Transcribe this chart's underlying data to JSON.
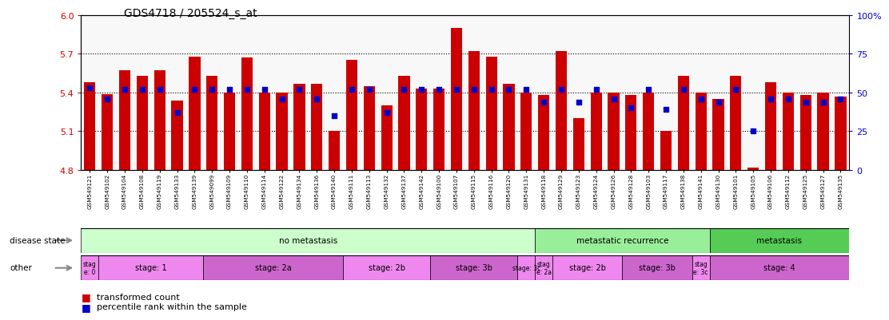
{
  "title": "GDS4718 / 205524_s_at",
  "samples": [
    "GSM549121",
    "GSM549102",
    "GSM549104",
    "GSM549108",
    "GSM549119",
    "GSM549133",
    "GSM549139",
    "GSM549099",
    "GSM549109",
    "GSM549110",
    "GSM549114",
    "GSM549122",
    "GSM549134",
    "GSM549136",
    "GSM549140",
    "GSM549111",
    "GSM549113",
    "GSM549132",
    "GSM549137",
    "GSM549142",
    "GSM549100",
    "GSM549107",
    "GSM549115",
    "GSM549116",
    "GSM549120",
    "GSM549131",
    "GSM549118",
    "GSM549129",
    "GSM549123",
    "GSM549124",
    "GSM549126",
    "GSM549128",
    "GSM549103",
    "GSM549117",
    "GSM549138",
    "GSM549141",
    "GSM549130",
    "GSM549101",
    "GSM549105",
    "GSM549106",
    "GSM549112",
    "GSM549125",
    "GSM549127",
    "GSM549135"
  ],
  "bar_values": [
    5.48,
    5.39,
    5.57,
    5.53,
    5.57,
    5.34,
    5.68,
    5.53,
    5.4,
    5.67,
    5.4,
    5.4,
    5.47,
    5.47,
    5.1,
    5.65,
    5.45,
    5.3,
    5.53,
    5.43,
    5.43,
    5.9,
    5.72,
    5.68,
    5.47,
    5.4,
    5.38,
    5.72,
    5.2,
    5.4,
    5.4,
    5.38,
    5.4,
    5.1,
    5.53,
    5.4,
    5.35,
    5.53,
    4.82,
    5.48,
    5.4,
    5.38,
    5.4,
    5.37
  ],
  "percentile_values": [
    53,
    46,
    52,
    52,
    52,
    37,
    52,
    52,
    52,
    52,
    52,
    46,
    52,
    46,
    35,
    52,
    52,
    37,
    52,
    52,
    52,
    52,
    52,
    52,
    52,
    52,
    44,
    52,
    44,
    52,
    46,
    40,
    52,
    39,
    52,
    46,
    44,
    52,
    25,
    46,
    46,
    44,
    44,
    46
  ],
  "ylim_left": [
    4.8,
    6.0
  ],
  "ylim_right": [
    0,
    100
  ],
  "yticks_left": [
    4.8,
    5.1,
    5.4,
    5.7,
    6.0
  ],
  "yticks_right": [
    0,
    25,
    50,
    75,
    100
  ],
  "hlines": [
    5.1,
    5.4,
    5.7
  ],
  "bar_color": "#cc0000",
  "dot_color": "#0000cc",
  "bar_bottom": 4.8,
  "disease_state_groups": [
    {
      "label": "no metastasis",
      "start": 0,
      "end": 26,
      "color": "#ccffcc"
    },
    {
      "label": "metastatic recurrence",
      "start": 26,
      "end": 36,
      "color": "#99ee99"
    },
    {
      "label": "metastasis",
      "start": 36,
      "end": 44,
      "color": "#55cc55"
    }
  ],
  "other_groups": [
    {
      "label": "stag\ne: 0",
      "start": 0,
      "end": 1,
      "color": "#ee88ee"
    },
    {
      "label": "stage: 1",
      "start": 1,
      "end": 7,
      "color": "#ee88ee"
    },
    {
      "label": "stage: 2a",
      "start": 7,
      "end": 15,
      "color": "#cc66cc"
    },
    {
      "label": "stage: 2b",
      "start": 15,
      "end": 20,
      "color": "#ee88ee"
    },
    {
      "label": "stage: 3b",
      "start": 20,
      "end": 25,
      "color": "#cc66cc"
    },
    {
      "label": "stage: 3c",
      "start": 25,
      "end": 26,
      "color": "#ee88ee"
    },
    {
      "label": "stag\ne: 2a",
      "start": 26,
      "end": 27,
      "color": "#ee88ee"
    },
    {
      "label": "stage: 2b",
      "start": 27,
      "end": 31,
      "color": "#ee88ee"
    },
    {
      "label": "stage: 3b",
      "start": 31,
      "end": 35,
      "color": "#cc66cc"
    },
    {
      "label": "stag\ne: 3c",
      "start": 35,
      "end": 36,
      "color": "#ee88ee"
    },
    {
      "label": "stage: 4",
      "start": 36,
      "end": 44,
      "color": "#cc66cc"
    }
  ],
  "legend_items": [
    {
      "label": "transformed count",
      "color": "#cc0000"
    },
    {
      "label": "percentile rank within the sample",
      "color": "#0000cc"
    }
  ],
  "left_label_color": "#cc0000",
  "right_label_color": "#0000cc",
  "bg_color": "#f0f0f0",
  "label_arrow_color": "#888888"
}
